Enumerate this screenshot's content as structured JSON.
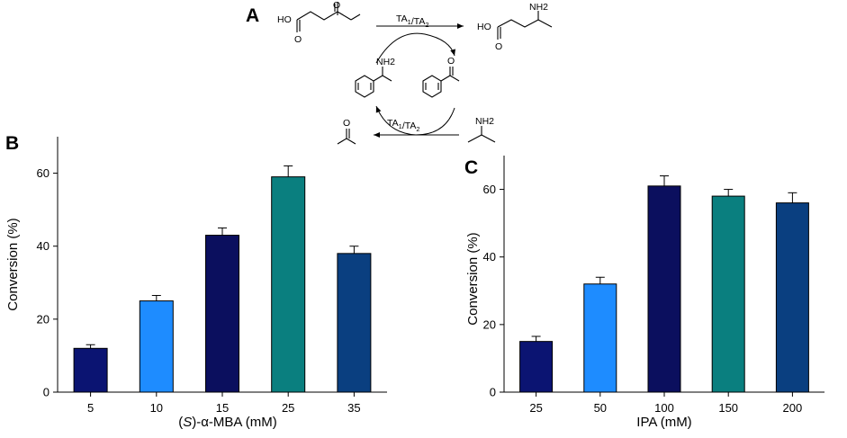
{
  "panel_a": {
    "letter": "A",
    "enzyme_top": "TA1/TA2",
    "enzyme_bottom": "TA1/TA2",
    "nh2_product": "NH2",
    "nh2_mba": "NH2",
    "nh2_ipa": "NH2",
    "carboxyl_left": "HO",
    "carboxyl_right": "HO",
    "o_atoms": "O"
  },
  "chart_data": [
    {
      "type": "bar",
      "panel": "B",
      "categories": [
        "5",
        "10",
        "15",
        "25",
        "35"
      ],
      "values": [
        12,
        25,
        43,
        59,
        38
      ],
      "errors": [
        1,
        1.5,
        2,
        3,
        2
      ],
      "colors": [
        "#0b1472",
        "#1e8cff",
        "#0b0f5e",
        "#0a7f7f",
        "#0a3f80"
      ],
      "xlabel": "(S)-α-MBA (mM)",
      "ylabel": "Conversion (%)",
      "ylim": [
        0,
        70
      ],
      "yticks": [
        0,
        20,
        40,
        60
      ],
      "grid": false
    },
    {
      "type": "bar",
      "panel": "C",
      "categories": [
        "25",
        "50",
        "100",
        "150",
        "200"
      ],
      "values": [
        15,
        32,
        61,
        58,
        56
      ],
      "errors": [
        1.5,
        2,
        3,
        2,
        3
      ],
      "colors": [
        "#0b1472",
        "#1e8cff",
        "#0b0f5e",
        "#0a7f7f",
        "#0a3f80"
      ],
      "xlabel": "IPA (mM)",
      "ylabel": "Conversion (%)",
      "ylim": [
        0,
        70
      ],
      "yticks": [
        0,
        20,
        40,
        60
      ],
      "grid": false
    }
  ]
}
